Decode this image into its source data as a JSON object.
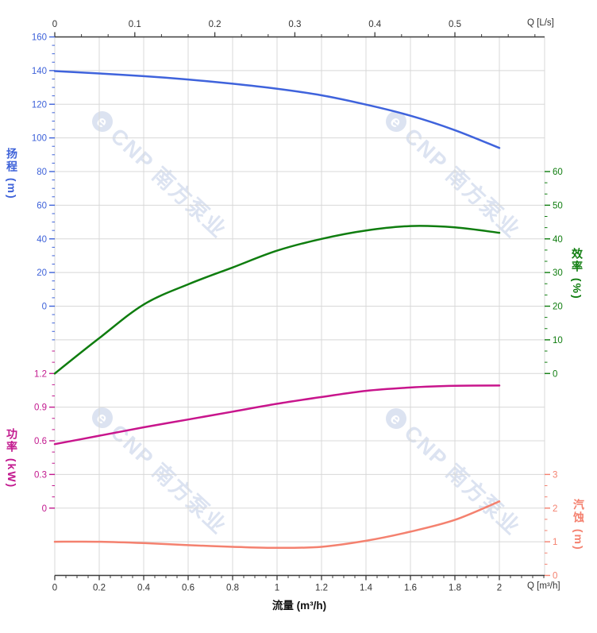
{
  "axes": {
    "top": {
      "label": "Q [L/s]",
      "tick_labels": [
        "0",
        "0.1",
        "0.2",
        "0.3",
        "0.4",
        "0.5"
      ],
      "color": "#333333"
    },
    "bottom": {
      "label": "Q [m³/h]",
      "axis_title": "流量 (m³/h)",
      "tick_labels": [
        "0",
        "0.2",
        "0.4",
        "0.6",
        "0.8",
        "1",
        "1.2",
        "1.4",
        "1.6",
        "1.8",
        "2"
      ],
      "color": "#333333"
    },
    "head": {
      "title": "扬程 (m)",
      "tick_labels": [
        "160",
        "140",
        "120",
        "100",
        "80",
        "60",
        "40",
        "20",
        "0"
      ],
      "color": "#3E62D9"
    },
    "efficiency": {
      "title": "效率 (%)",
      "tick_labels": [
        "60",
        "50",
        "40",
        "30",
        "20",
        "10",
        "0"
      ],
      "color": "#0F7D0F"
    },
    "power": {
      "title": "功率 (kW)",
      "tick_labels": [
        "1.2",
        "0.9",
        "0.6",
        "0.3",
        "0"
      ],
      "color": "#C2188E"
    },
    "npsh": {
      "title": "汽蚀 (m)",
      "tick_labels": [
        "3",
        "2",
        "1",
        "0"
      ],
      "color": "#F4816F"
    }
  },
  "watermark": {
    "text": "CNP 南方泵业",
    "logo_letter": "e",
    "color": "#dce3f1"
  },
  "chart_data": {
    "type": "line",
    "title": "",
    "xlabel": "流量 (m³/h)",
    "xlabel_secondary": "Q [L/s]",
    "x_range_m3h": [
      0,
      2.2
    ],
    "x_range_ls": [
      0,
      0.61
    ],
    "grid": true,
    "x": [
      0,
      0.2,
      0.4,
      0.6,
      0.8,
      1.0,
      1.2,
      1.4,
      1.6,
      1.8,
      2.0
    ],
    "series": [
      {
        "key": "head",
        "name": "扬程",
        "unit": "m",
        "color": "#3F63DC",
        "axis_range": [
          0,
          160
        ],
        "values": [
          139.7,
          138.3,
          136.7,
          134.7,
          132.2,
          129.2,
          125.3,
          119.8,
          113.2,
          104.6,
          94.0
        ]
      },
      {
        "key": "efficiency",
        "name": "效率",
        "unit": "%",
        "color": "#0F7D0F",
        "axis_range": [
          0,
          60
        ],
        "values": [
          0,
          10.5,
          20.5,
          26.5,
          31.5,
          36.5,
          40.0,
          42.5,
          43.8,
          43.4,
          41.8
        ]
      },
      {
        "key": "power",
        "name": "功率",
        "unit": "kW",
        "color": "#C8158C",
        "axis_range": [
          0,
          1.2
        ],
        "values": [
          0.57,
          0.645,
          0.72,
          0.79,
          0.86,
          0.93,
          0.99,
          1.045,
          1.075,
          1.09,
          1.093
        ]
      },
      {
        "key": "npsh",
        "name": "汽蚀",
        "unit": "m",
        "color": "#F4816F",
        "axis_range": [
          0,
          3
        ],
        "values": [
          1.0,
          1.0,
          0.96,
          0.9,
          0.85,
          0.82,
          0.85,
          1.03,
          1.3,
          1.65,
          2.2
        ]
      }
    ]
  }
}
